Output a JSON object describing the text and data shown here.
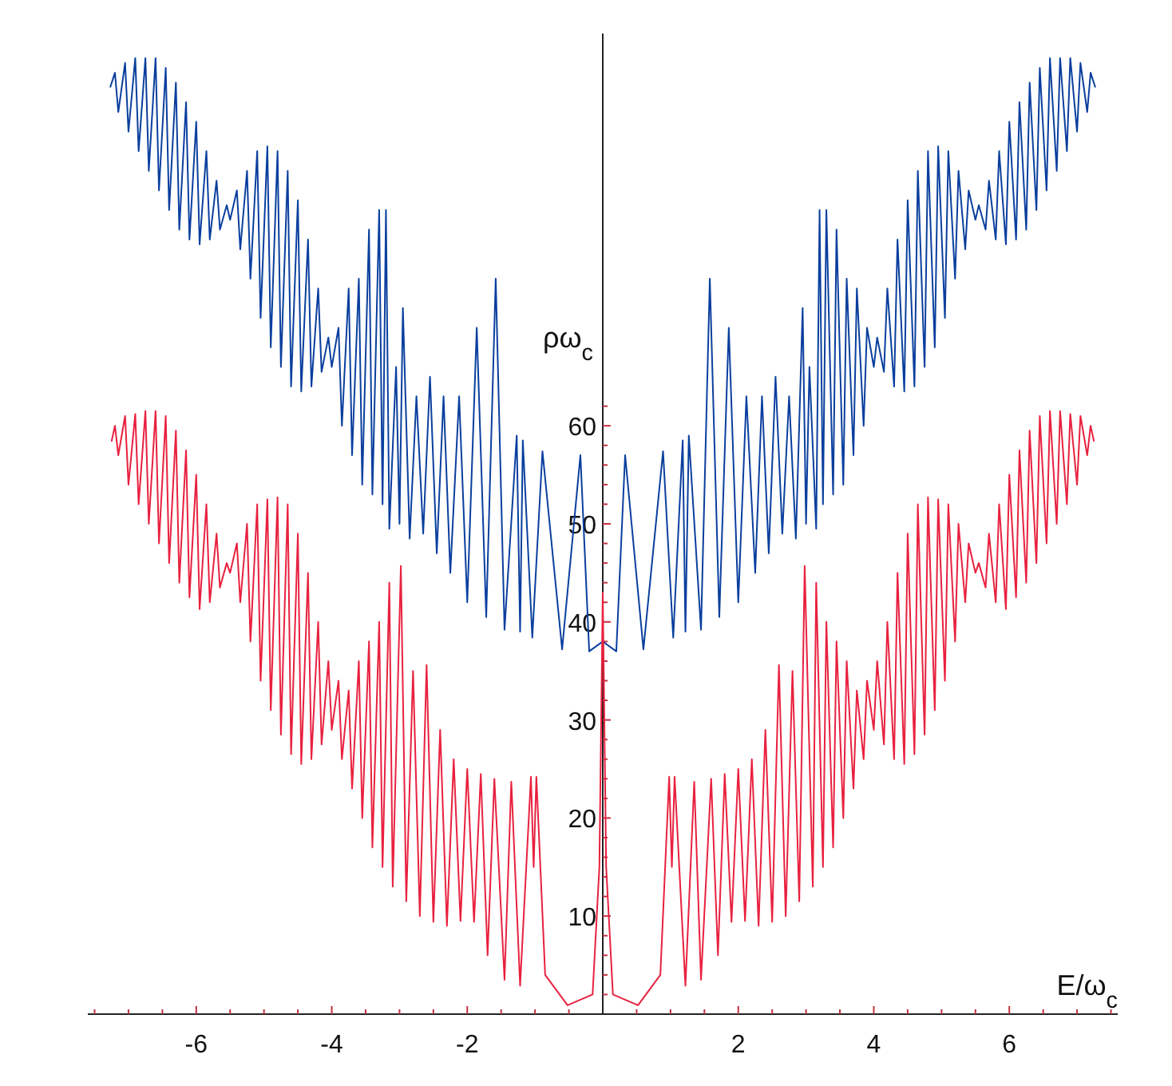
{
  "chart_data": {
    "type": "line",
    "xlabel": "E/ω$_{c}$",
    "ylabel": "ρω$_{c}$",
    "xlim": [
      -7.6,
      7.6
    ],
    "ylim": [
      0,
      100
    ],
    "xticks": [
      {
        "value": -7.5,
        "label": null
      },
      -6,
      {
        "value": -5.5,
        "label": null
      },
      {
        "value": -5,
        "label": null
      },
      {
        "value": -4.5,
        "label": null
      },
      -4,
      {
        "value": -3.5,
        "label": null
      },
      {
        "value": -3,
        "label": null
      },
      {
        "value": -2.5,
        "label": null
      },
      -2,
      {
        "value": -1.5,
        "label": null
      },
      {
        "value": -1,
        "label": null
      },
      {
        "value": -0.5,
        "label": null
      },
      {
        "value": 0.5,
        "label": null
      },
      {
        "value": 1,
        "label": null
      },
      {
        "value": 1.5,
        "label": null
      },
      2,
      {
        "value": 2.5,
        "label": null
      },
      {
        "value": 3,
        "label": null
      },
      {
        "value": 3.5,
        "label": null
      },
      4,
      {
        "value": 4.5,
        "label": null
      },
      {
        "value": 5,
        "label": null
      },
      {
        "value": 5.5,
        "label": null
      },
      6,
      {
        "value": 6.5,
        "label": null
      },
      {
        "value": 7,
        "label": null
      },
      {
        "value": 7.5,
        "label": null
      },
      {
        "value": -6.5,
        "label": null
      },
      {
        "value": -7,
        "label": null
      }
    ],
    "yticks": [
      {
        "value": 2,
        "label": null
      },
      {
        "value": 4,
        "label": null
      },
      {
        "value": 6,
        "label": null
      },
      {
        "value": 8,
        "label": null
      },
      10,
      {
        "value": 12,
        "label": null
      },
      {
        "value": 14,
        "label": null
      },
      {
        "value": 16,
        "label": null
      },
      {
        "value": 18,
        "label": null
      },
      20,
      {
        "value": 22,
        "label": null
      },
      {
        "value": 24,
        "label": null
      },
      {
        "value": 26,
        "label": null
      },
      {
        "value": 28,
        "label": null
      },
      30,
      {
        "value": 32,
        "label": null
      },
      {
        "value": 34,
        "label": null
      },
      {
        "value": 36,
        "label": null
      },
      {
        "value": 38,
        "label": null
      },
      40,
      {
        "value": 42,
        "label": null
      },
      {
        "value": 44,
        "label": null
      },
      {
        "value": 46,
        "label": null
      },
      {
        "value": 48,
        "label": null
      },
      50,
      {
        "value": 52,
        "label": null
      },
      {
        "value": 54,
        "label": null
      },
      {
        "value": 56,
        "label": null
      },
      {
        "value": 58,
        "label": null
      },
      60,
      {
        "value": 62,
        "label": null
      }
    ],
    "marker": "none",
    "line_style": "solid",
    "series": [
      {
        "color": "#0a3f9e",
        "x": [
          -7.27,
          -7.2,
          -7.15,
          -7.05,
          -7.0,
          -6.9,
          -6.85,
          -6.75,
          -6.7,
          -6.6,
          -6.55,
          -6.45,
          -6.4,
          -6.3,
          -6.25,
          -6.15,
          -6.1,
          -6.0,
          -5.95,
          -5.85,
          -5.8,
          -5.7,
          -5.65,
          -5.55,
          -5.5,
          -5.4,
          -5.35,
          -5.25,
          -5.2,
          -5.1,
          -5.05,
          -4.95,
          -4.9,
          -4.8,
          -4.75,
          -4.65,
          -4.6,
          -4.5,
          -4.45,
          -4.35,
          -4.3,
          -4.2,
          -4.15,
          -4.05,
          -4.0,
          -3.9,
          -3.85,
          -3.75,
          -3.7,
          -3.6,
          -3.55,
          -3.45,
          -3.4,
          -3.3,
          -3.25,
          -3.2,
          -3.15,
          -3.05,
          -3.0,
          -2.95,
          -2.85,
          -2.75,
          -2.65,
          -2.55,
          -2.45,
          -2.35,
          -2.25,
          -2.12,
          -2.0,
          -1.86,
          -1.72,
          -1.58,
          -1.45,
          -1.27,
          -1.22,
          -1.18,
          -1.04,
          -0.89,
          -0.6,
          -0.33,
          -0.2,
          0,
          0.2,
          0.33,
          0.6,
          0.89,
          1.04,
          1.18,
          1.22,
          1.27,
          1.45,
          1.58,
          1.72,
          1.86,
          2.0,
          2.12,
          2.25,
          2.35,
          2.45,
          2.55,
          2.65,
          2.75,
          2.85,
          2.95,
          3.0,
          3.05,
          3.15,
          3.2,
          3.25,
          3.3,
          3.4,
          3.45,
          3.55,
          3.6,
          3.7,
          3.75,
          3.85,
          3.9,
          4.0,
          4.05,
          4.15,
          4.2,
          4.3,
          4.35,
          4.45,
          4.5,
          4.6,
          4.65,
          4.75,
          4.8,
          4.9,
          4.95,
          5.05,
          5.1,
          5.2,
          5.25,
          5.35,
          5.4,
          5.5,
          5.55,
          5.65,
          5.7,
          5.8,
          5.85,
          5.95,
          6.0,
          6.1,
          6.15,
          6.25,
          6.3,
          6.4,
          6.45,
          6.55,
          6.6,
          6.7,
          6.75,
          6.85,
          6.9,
          7.0,
          7.05,
          7.15,
          7.2,
          7.27
        ],
        "values": [
          94.5,
          96,
          92,
          97,
          90,
          97.5,
          88,
          97.5,
          86,
          97.5,
          84,
          96.5,
          82,
          95,
          80,
          93,
          79,
          91,
          78.5,
          88,
          79,
          85,
          80,
          82.5,
          81,
          84,
          78,
          86,
          75,
          88,
          71,
          88.5,
          68,
          88,
          66,
          86,
          64,
          83,
          63.5,
          79,
          64,
          74,
          65.5,
          69,
          66,
          70,
          60,
          74,
          57,
          75,
          54,
          80,
          53,
          82,
          52,
          82,
          49.5,
          66,
          50,
          72,
          48.5,
          63,
          49,
          65,
          47,
          63,
          45,
          63,
          42,
          70,
          40.5,
          75,
          39.2,
          59,
          39,
          58.5,
          38.4,
          57.4,
          37.2,
          57,
          37,
          38,
          37,
          57,
          37.2,
          57.4,
          38.4,
          58.5,
          39,
          59,
          39.2,
          75,
          40.5,
          70,
          42,
          63,
          45,
          63,
          47,
          65,
          49,
          63,
          48.5,
          72,
          50,
          66,
          49.5,
          82,
          52,
          82,
          53,
          80,
          54,
          75,
          57,
          74,
          60,
          70,
          66,
          69,
          65.5,
          74,
          64,
          79,
          63.5,
          83,
          64,
          86,
          66,
          88,
          68,
          88.5,
          71,
          88,
          75,
          86,
          78,
          84,
          81,
          82.5,
          80,
          85,
          79,
          88,
          78.5,
          91,
          79,
          93,
          80,
          95,
          82,
          96.5,
          84,
          97.5,
          86,
          97.5,
          88,
          97.5,
          90,
          97,
          92,
          96,
          94.5
        ]
      },
      {
        "color": "#e8213f",
        "x": [
          -7.25,
          -7.2,
          -7.15,
          -7.05,
          -7.0,
          -6.9,
          -6.85,
          -6.75,
          -6.7,
          -6.6,
          -6.55,
          -6.45,
          -6.4,
          -6.3,
          -6.25,
          -6.15,
          -6.1,
          -6.0,
          -5.95,
          -5.85,
          -5.8,
          -5.7,
          -5.65,
          -5.55,
          -5.5,
          -5.4,
          -5.35,
          -5.25,
          -5.2,
          -5.1,
          -5.05,
          -4.95,
          -4.9,
          -4.8,
          -4.75,
          -4.65,
          -4.6,
          -4.5,
          -4.45,
          -4.35,
          -4.3,
          -4.2,
          -4.15,
          -4.05,
          -4.0,
          -3.9,
          -3.85,
          -3.75,
          -3.7,
          -3.6,
          -3.55,
          -3.45,
          -3.4,
          -3.3,
          -3.25,
          -3.15,
          -3.1,
          -2.98,
          -2.9,
          -2.8,
          -2.7,
          -2.6,
          -2.5,
          -2.4,
          -2.3,
          -2.2,
          -2.1,
          -2.0,
          -1.9,
          -1.8,
          -1.7,
          -1.6,
          -1.45,
          -1.35,
          -1.22,
          -1.06,
          -1.02,
          -0.98,
          -0.85,
          -0.52,
          -0.15,
          -0.05,
          0,
          0.05,
          0.15,
          0.52,
          0.85,
          0.98,
          1.02,
          1.06,
          1.22,
          1.35,
          1.45,
          1.6,
          1.7,
          1.8,
          1.9,
          2.0,
          2.1,
          2.2,
          2.3,
          2.4,
          2.5,
          2.6,
          2.7,
          2.8,
          2.9,
          2.98,
          3.1,
          3.15,
          3.25,
          3.3,
          3.4,
          3.45,
          3.55,
          3.6,
          3.7,
          3.75,
          3.85,
          3.9,
          4.0,
          4.05,
          4.15,
          4.2,
          4.3,
          4.35,
          4.45,
          4.5,
          4.6,
          4.65,
          4.75,
          4.8,
          4.9,
          4.95,
          5.05,
          5.1,
          5.2,
          5.25,
          5.35,
          5.4,
          5.5,
          5.55,
          5.65,
          5.7,
          5.8,
          5.85,
          5.95,
          6.0,
          6.1,
          6.15,
          6.25,
          6.3,
          6.4,
          6.45,
          6.55,
          6.6,
          6.7,
          6.75,
          6.85,
          6.9,
          7.0,
          7.05,
          7.15,
          7.2,
          7.25
        ],
        "values": [
          58.4,
          60,
          57,
          61,
          54,
          61.2,
          52,
          61.5,
          50,
          61.5,
          48,
          61,
          46,
          59.5,
          44,
          57.5,
          42.5,
          55,
          41.3,
          52,
          42,
          49,
          43.5,
          46,
          45,
          48,
          42,
          50,
          38,
          52,
          34,
          52.5,
          31,
          52.7,
          28.5,
          52,
          26.5,
          49,
          25.5,
          45,
          26,
          40,
          27.5,
          36,
          29,
          34,
          26,
          33,
          23,
          36,
          20,
          38,
          17,
          40,
          15,
          44,
          13,
          45.7,
          11.5,
          35,
          10,
          35.6,
          9.4,
          29,
          9,
          26,
          9.5,
          25,
          9.4,
          24.5,
          6,
          24,
          3.5,
          23.7,
          2.9,
          24.2,
          15,
          24.2,
          4,
          0.9,
          2,
          15,
          43,
          15,
          2,
          0.9,
          4,
          24.2,
          15,
          24.2,
          2.9,
          23.7,
          3.5,
          24,
          6,
          24.5,
          9.4,
          25,
          9.5,
          26,
          9,
          29,
          9.4,
          35.6,
          10,
          35,
          11.5,
          45.7,
          13,
          44,
          15,
          40,
          17,
          38,
          20,
          36,
          23,
          33,
          26,
          34,
          29,
          36,
          27.5,
          40,
          26,
          45,
          25.5,
          49,
          26.5,
          52,
          28.5,
          52.7,
          31,
          52.5,
          34,
          52,
          38,
          50,
          42,
          48,
          45,
          46,
          43.5,
          49,
          42,
          52,
          41.3,
          55,
          42.5,
          57.5,
          44,
          59.5,
          46,
          61,
          48,
          61.5,
          50,
          61.5,
          52,
          61.2,
          54,
          61,
          57,
          60,
          58.4
        ]
      }
    ]
  }
}
